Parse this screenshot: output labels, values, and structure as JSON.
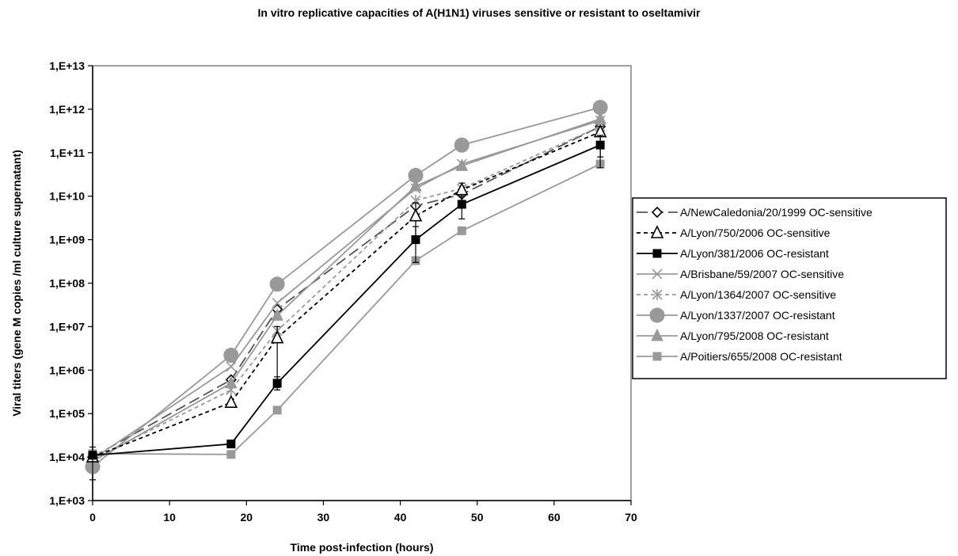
{
  "chart_data": {
    "type": "line",
    "title": "In vitro replicative capacities of A(H1N1) viruses sensitive or resistant to oseltamivir",
    "xlabel": "Time post-infection (hours)",
    "ylabel": "Viral titers (gene M copies /ml culture supernatant)",
    "xlim": [
      0,
      70
    ],
    "xticks": [
      0,
      10,
      20,
      30,
      40,
      50,
      60,
      70
    ],
    "ylim": [
      1000,
      10000000000000
    ],
    "y_scale": "log",
    "yticks": [
      1000,
      10000,
      100000,
      1000000,
      10000000,
      100000000,
      1000000000,
      10000000000,
      100000000000,
      1000000000000,
      10000000000000
    ],
    "ytick_labels": [
      "1,E+03",
      "1,E+04",
      "1,E+05",
      "1,E+06",
      "1,E+07",
      "1,E+08",
      "1,E+09",
      "1,E+10",
      "1,E+11",
      "1,E+12",
      "1,E+13"
    ],
    "grid": false,
    "legend_position": "right",
    "x": [
      0,
      18,
      24,
      42,
      48,
      66
    ],
    "series": [
      {
        "name": "A/NewCaledonia/20/1999 OC-sensitive",
        "color": "#555555",
        "marker": "diamond-open",
        "dash": "long-dash",
        "values": [
          10000,
          600000,
          25000000,
          6000000000,
          11000000000,
          400000000000
        ]
      },
      {
        "name": "A/Lyon/750/2006 OC-sensitive",
        "color": "#000000",
        "marker": "triangle-open",
        "dash": "short-dash",
        "values": [
          10000,
          180000,
          5500000,
          3500000000,
          14000000000,
          300000000000
        ],
        "err_low": [
          null,
          null,
          400000,
          900000000,
          8000000000,
          80000000000
        ],
        "err_high": [
          null,
          null,
          10000000,
          7000000000,
          20000000000,
          400000000000
        ]
      },
      {
        "name": "A/Lyon/381/2006 OC-resistant",
        "color": "#000000",
        "marker": "square-filled",
        "dash": "solid",
        "values": [
          11000,
          20000,
          500000,
          1000000000,
          6500000000,
          150000000000
        ],
        "err_low": [
          3000,
          null,
          350000,
          300000000,
          3000000000,
          45000000000
        ],
        "err_high": [
          17000,
          null,
          700000,
          2000000000,
          10000000000,
          250000000000
        ]
      },
      {
        "name": "A/Brisbane/59/2007 OC-sensitive",
        "color": "#999999",
        "marker": "x",
        "dash": "solid",
        "values": [
          9000,
          1200000,
          35000000,
          15000000000,
          55000000000,
          550000000000
        ]
      },
      {
        "name": "A/Lyon/1364/2007 OC-sensitive",
        "color": "#999999",
        "marker": "asterisk",
        "dash": "short-dash",
        "values": [
          9000,
          350000,
          8000000,
          8000000000,
          15000000000,
          400000000000
        ]
      },
      {
        "name": "A/Lyon/1337/2007 OC-resistant",
        "color": "#999999",
        "marker": "circle-filled",
        "dash": "solid",
        "values": [
          6000,
          2200000,
          95000000,
          30000000000,
          150000000000,
          1100000000000
        ]
      },
      {
        "name": "A/Lyon/795/2008 OC-resistant",
        "color": "#999999",
        "marker": "triangle-filled",
        "dash": "solid",
        "values": [
          8000,
          500000,
          18000000,
          17000000000,
          50000000000,
          600000000000
        ]
      },
      {
        "name": "A/Poitiers/655/2008 OC-resistant",
        "color": "#999999",
        "marker": "square-filled",
        "dash": "solid",
        "values": [
          12000,
          11500,
          120000,
          330000000,
          1600000000,
          55000000000
        ]
      }
    ]
  }
}
